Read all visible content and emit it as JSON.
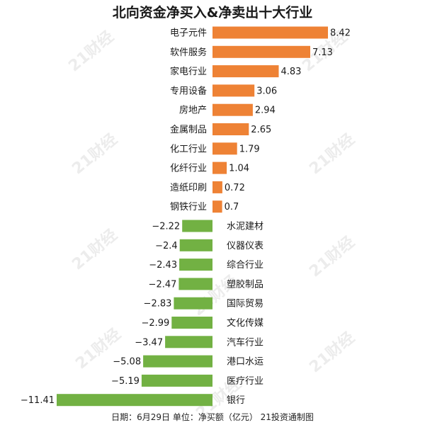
{
  "chart_data": {
    "type": "bar",
    "orientation": "horizontal",
    "title": "北向资金净买入&净卖出十大行业",
    "categories": [
      "电子元件",
      "软件服务",
      "家电行业",
      "专用设备",
      "房地产",
      "金属制品",
      "化工行业",
      "化纤行业",
      "造纸印刷",
      "钢铁行业",
      "水泥建材",
      "仪器仪表",
      "综合行业",
      "塑胶制品",
      "国际贸易",
      "文化传媒",
      "汽车行业",
      "港口水运",
      "医疗行业",
      "银行"
    ],
    "values": [
      8.42,
      7.13,
      4.83,
      3.06,
      2.94,
      2.65,
      1.79,
      1.04,
      0.72,
      0.7,
      -2.22,
      -2.4,
      -2.43,
      -2.47,
      -2.83,
      -2.99,
      -3.47,
      -5.08,
      -5.19,
      -11.41
    ],
    "value_labels": [
      "8.42",
      "7.13",
      "4.83",
      "3.06",
      "2.94",
      "2.65",
      "1.79",
      "1.04",
      "0.72",
      "0.7",
      "−2.22",
      "−2.4",
      "−2.43",
      "−2.47",
      "−2.83",
      "−2.99",
      "−3.47",
      "−5.08",
      "−5.19",
      "−11.41"
    ],
    "xlim": [
      -11.41,
      8.42
    ],
    "grid": false,
    "legend": "none",
    "colors": {
      "positive": "#EE8235",
      "negative": "#72B143"
    }
  },
  "footer": "日期：6月29日 单位：净买额（亿元） 21投资通制图",
  "watermark": "21财经"
}
